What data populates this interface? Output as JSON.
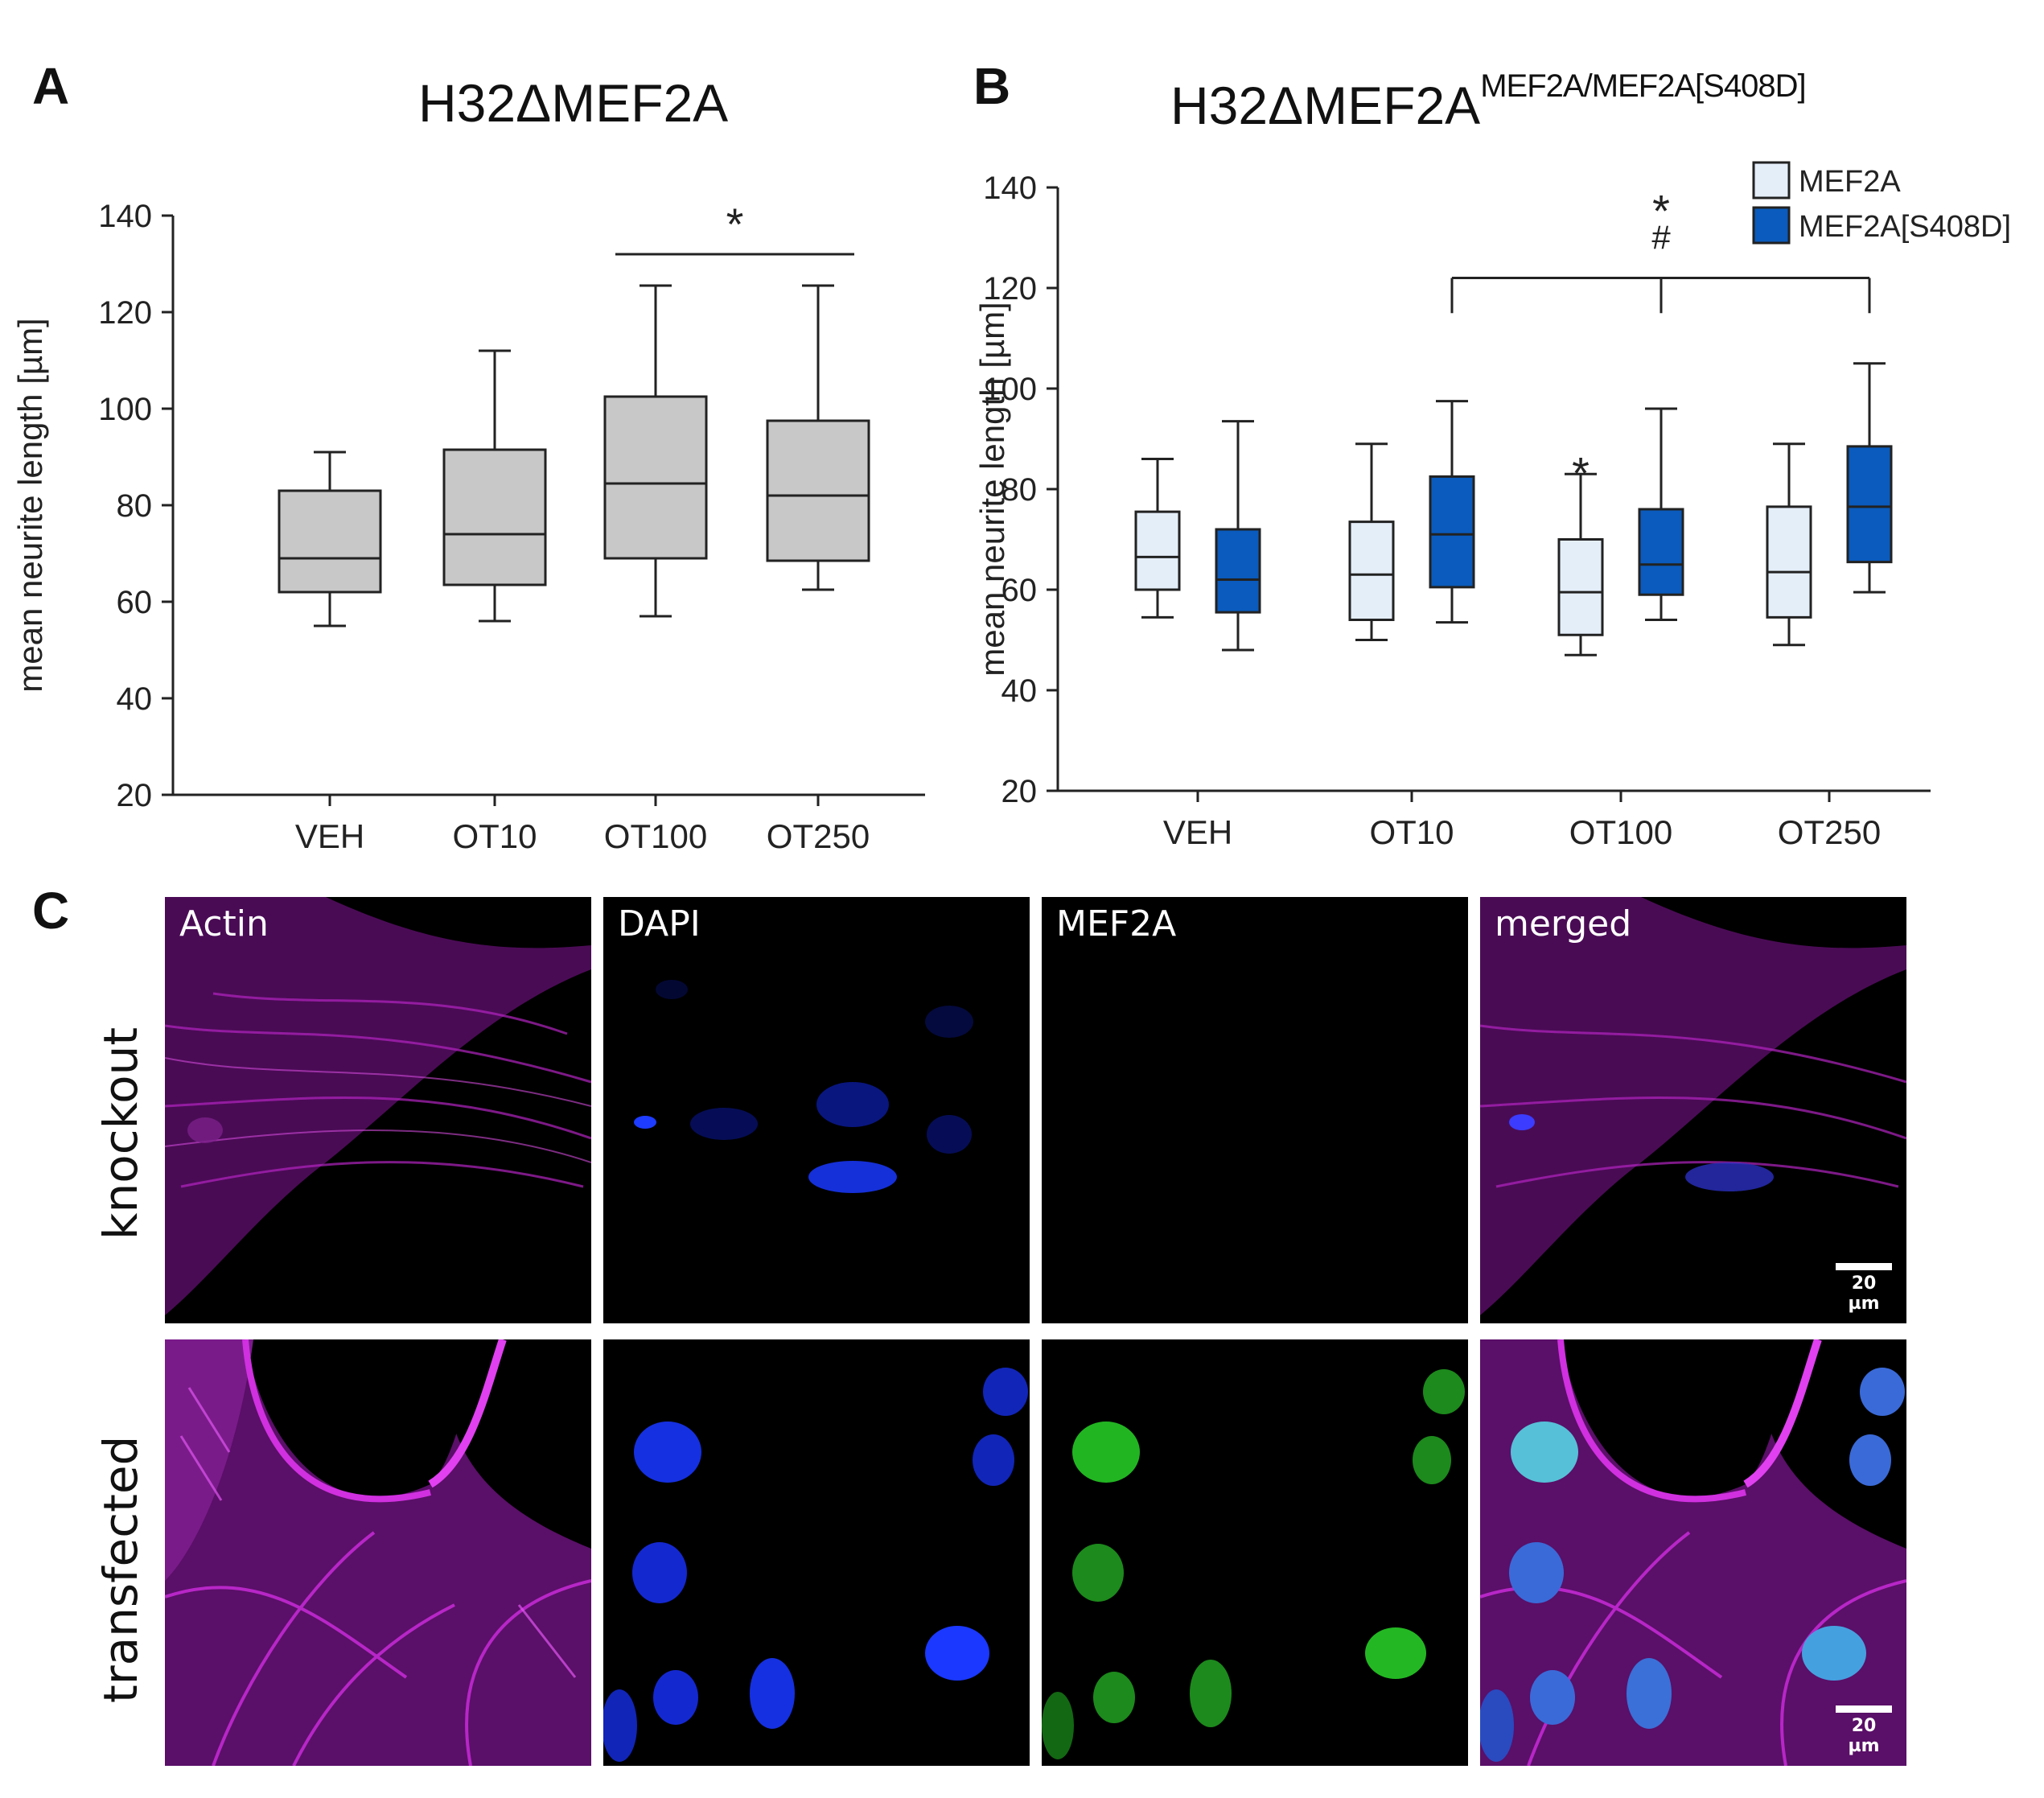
{
  "panels": {
    "a_letter": "A",
    "b_letter": "B",
    "c_letter": "C"
  },
  "chart_data": [
    {
      "type": "box",
      "title": "H32ΔMEF2A",
      "ylabel": "mean neurite length [µm]",
      "xlabel": "",
      "ylim": [
        20,
        140
      ],
      "yticks": [
        "20",
        "40",
        "60",
        "80",
        "100",
        "120",
        "140"
      ],
      "categories": [
        "VEH",
        "OT10",
        "OT100",
        "OT250"
      ],
      "series": [
        {
          "color": "#c8c8c8",
          "boxes": [
            {
              "min": 55,
              "q1": 62,
              "median": 69,
              "q3": 83,
              "max": 91
            },
            {
              "min": 56,
              "q1": 63.5,
              "median": 74,
              "q3": 91.5,
              "max": 112
            },
            {
              "min": 57,
              "q1": 69,
              "median": 84.5,
              "q3": 102.5,
              "max": 125.5
            },
            {
              "min": 62.5,
              "q1": 68.5,
              "median": 82,
              "q3": 97.5,
              "max": 125.5
            }
          ]
        }
      ],
      "annotations": [
        {
          "text": "*",
          "from": "OT100",
          "to": "OT250",
          "y": 132
        }
      ],
      "grid": false,
      "legend": "none"
    },
    {
      "type": "box",
      "title": "H32ΔMEF2A",
      "title_superscript": "MEF2A/MEF2A[S408D]",
      "ylabel": "mean neurite length [µm]",
      "xlabel": "",
      "ylim": [
        20,
        140
      ],
      "yticks": [
        "20",
        "40",
        "60",
        "80",
        "100",
        "120",
        "140"
      ],
      "categories": [
        "VEH",
        "OT10",
        "OT100",
        "OT250"
      ],
      "series": [
        {
          "name": "MEF2A",
          "color": "#e4eef9",
          "boxes": [
            {
              "min": 54.5,
              "q1": 60,
              "median": 66.5,
              "q3": 75.5,
              "max": 86
            },
            {
              "min": 50,
              "q1": 54,
              "median": 63,
              "q3": 73.5,
              "max": 89
            },
            {
              "min": 47,
              "q1": 51,
              "median": 59.5,
              "q3": 70,
              "max": 83
            },
            {
              "min": 49,
              "q1": 54.5,
              "median": 63.5,
              "q3": 76.5,
              "max": 89
            }
          ]
        },
        {
          "name": "MEF2A[S408D]",
          "color": "#0a5bbd",
          "boxes": [
            {
              "min": 48,
              "q1": 55.5,
              "median": 62,
              "q3": 72,
              "max": 93.5
            },
            {
              "min": 53.5,
              "q1": 60.5,
              "median": 71,
              "q3": 82.5,
              "max": 97.5
            },
            {
              "min": 54,
              "q1": 59,
              "median": 65,
              "q3": 76,
              "max": 96
            },
            {
              "min": 59.5,
              "q1": 65.5,
              "median": 76.5,
              "q3": 88.5,
              "max": 105
            }
          ]
        }
      ],
      "annotations": [
        {
          "text": "*",
          "category": "OT100",
          "series": "MEF2A"
        },
        {
          "text": "*",
          "category": "OT100",
          "series": "MEF2A[S408D]"
        },
        {
          "text": "#",
          "category": "OT100",
          "series": "MEF2A[S408D]"
        }
      ],
      "bracket": {
        "from": "OT10",
        "via": "OT100",
        "to": "OT250",
        "series": "MEF2A[S408D]",
        "y": 122
      },
      "grid": false,
      "legend": "top-right"
    }
  ],
  "panel_c": {
    "channels": [
      "Actin",
      "DAPI",
      "MEF2A",
      "merged"
    ],
    "rows": [
      "knockout",
      "transfected"
    ],
    "scalebar_label": "20 µm",
    "colors": {
      "actin": "#c020c8",
      "dapi": "#1030ff",
      "mef2a": "#20c020"
    }
  }
}
